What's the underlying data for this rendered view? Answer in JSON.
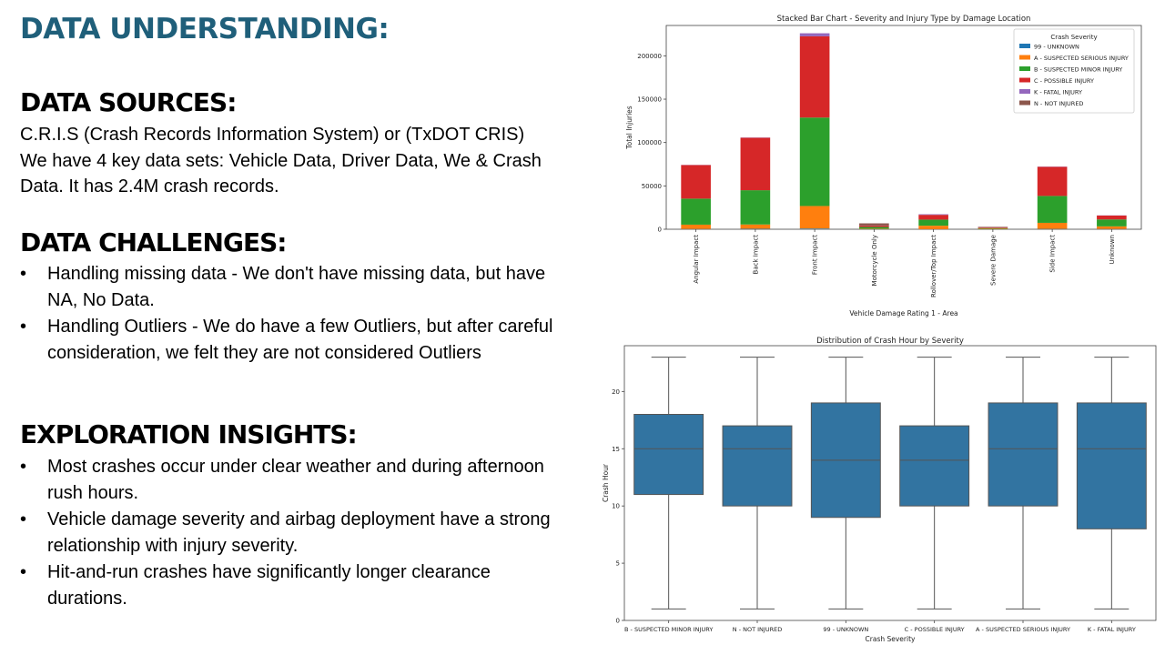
{
  "slide": {
    "title": "DATA UNDERSTANDING:",
    "sources": {
      "heading": "DATA SOURCES:",
      "lines": [
        "C.R.I.S (Crash Records Information System) or (TxDOT CRIS)",
        "We have 4 key data sets: Vehicle Data, Driver Data, We & Crash Data. It has 2.4M crash records."
      ]
    },
    "challenges": {
      "heading": "DATA CHALLENGES:",
      "bullets": [
        "Handling missing data - We don't have missing data, but have NA, No Data.",
        "Handling Outliers - We do have a few Outliers, but after careful consideration, we felt they are not considered Outliers"
      ]
    },
    "insights": {
      "heading": "EXPLORATION INSIGHTS:",
      "bullets": [
        "Most crashes occur under clear weather and during afternoon rush hours.",
        "Vehicle damage severity and airbag deployment have a strong relationship with injury severity.",
        "Hit-and-run crashes have significantly longer clearance durations."
      ]
    },
    "bullet_glyph": "•"
  },
  "chart_data": [
    {
      "type": "bar",
      "stacked": true,
      "title": "Stacked Bar Chart - Severity and Injury Type by Damage Location",
      "xlabel": "Vehicle Damage Rating 1 - Area",
      "ylabel": "Total Injuries",
      "ylim": [
        0,
        235000
      ],
      "yticks": [
        0,
        50000,
        100000,
        150000,
        200000
      ],
      "categories": [
        "Angular Impact",
        "Back Impact",
        "Front Impact",
        "Motorcycle Only",
        "Rollover/Top Impact",
        "Severe Damage",
        "Side Impact",
        "Unknown"
      ],
      "legend_title": "Crash Severity",
      "legend_position": "top-right",
      "series": [
        {
          "name": "99 - UNKNOWN",
          "color": "#1f77b4",
          "values": [
            300,
            500,
            800,
            100,
            100,
            50,
            400,
            300
          ]
        },
        {
          "name": "A - SUSPECTED SERIOUS INJURY",
          "color": "#ff7f0e",
          "values": [
            5000,
            5000,
            26000,
            500,
            4000,
            500,
            7000,
            3000
          ]
        },
        {
          "name": "B - SUSPECTED MINOR INJURY",
          "color": "#2ca02c",
          "values": [
            30000,
            39500,
            102000,
            2000,
            7000,
            700,
            31000,
            8000
          ]
        },
        {
          "name": "C - POSSIBLE INJURY",
          "color": "#d62728",
          "values": [
            38700,
            60500,
            93700,
            1500,
            5500,
            700,
            33600,
            4500
          ]
        },
        {
          "name": "K - FATAL INJURY",
          "color": "#9467bd",
          "values": [
            200,
            300,
            3500,
            200,
            700,
            100,
            300,
            200
          ]
        },
        {
          "name": "N - NOT INJURED",
          "color": "#8c564b",
          "values": [
            0,
            0,
            0,
            2500,
            0,
            700,
            0,
            0
          ]
        }
      ]
    },
    {
      "type": "box",
      "title": "Distribution of Crash Hour by Severity",
      "xlabel": "Crash Severity",
      "ylabel": "Crash Hour",
      "ylim": [
        0,
        24
      ],
      "yticks": [
        0,
        5,
        10,
        15,
        20
      ],
      "color": "#3274a1",
      "categories": [
        "B - SUSPECTED MINOR INJURY",
        "N - NOT INJURED",
        "99 - UNKNOWN",
        "C - POSSIBLE INJURY",
        "A - SUSPECTED SERIOUS INJURY",
        "K - FATAL INJURY"
      ],
      "boxes": [
        {
          "min": 1,
          "q1": 11,
          "median": 15,
          "q3": 18,
          "max": 23
        },
        {
          "min": 1,
          "q1": 10,
          "median": 15,
          "q3": 17,
          "max": 23
        },
        {
          "min": 1,
          "q1": 9,
          "median": 14,
          "q3": 19,
          "max": 23
        },
        {
          "min": 1,
          "q1": 10,
          "median": 14,
          "q3": 17,
          "max": 23
        },
        {
          "min": 1,
          "q1": 10,
          "median": 15,
          "q3": 19,
          "max": 23
        },
        {
          "min": 1,
          "q1": 8,
          "median": 15,
          "q3": 19,
          "max": 23
        }
      ]
    }
  ]
}
